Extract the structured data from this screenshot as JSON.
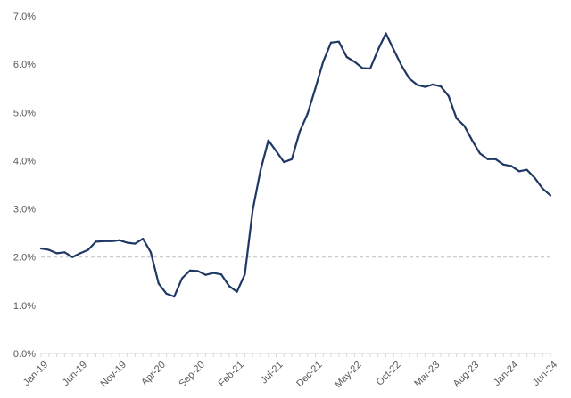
{
  "chart_data": {
    "type": "line",
    "title": "",
    "xlabel": "",
    "ylabel": "",
    "ylim": [
      0,
      7
    ],
    "y_ticks": [
      "0.0%",
      "1.0%",
      "2.0%",
      "3.0%",
      "4.0%",
      "5.0%",
      "6.0%",
      "7.0%"
    ],
    "x_tick_labels": [
      "Jan-19",
      "Jun-19",
      "Nov-19",
      "Apr-20",
      "Sep-20",
      "Feb-21",
      "Jul-21",
      "Dec-21",
      "May-22",
      "Oct-22",
      "Mar-23",
      "Aug-23",
      "Jan-24",
      "Jun-24"
    ],
    "x_start": "2019-01",
    "x_end": "2024-06",
    "grid": false,
    "reference_line": {
      "y": 2.0,
      "style": "dashed",
      "color": "#bfbfbf"
    },
    "series": [
      {
        "color": "#1f3864",
        "x": [
          "2019-01",
          "2019-02",
          "2019-03",
          "2019-04",
          "2019-05",
          "2019-06",
          "2019-07",
          "2019-08",
          "2019-09",
          "2019-10",
          "2019-11",
          "2019-12",
          "2020-01",
          "2020-02",
          "2020-03",
          "2020-04",
          "2020-05",
          "2020-06",
          "2020-07",
          "2020-08",
          "2020-09",
          "2020-10",
          "2020-11",
          "2020-12",
          "2021-01",
          "2021-02",
          "2021-03",
          "2021-04",
          "2021-05",
          "2021-06",
          "2021-07",
          "2021-08",
          "2021-09",
          "2021-10",
          "2021-11",
          "2021-12",
          "2022-01",
          "2022-02",
          "2022-03",
          "2022-04",
          "2022-05",
          "2022-06",
          "2022-07",
          "2022-08",
          "2022-09",
          "2022-10",
          "2022-11",
          "2022-12",
          "2023-01",
          "2023-02",
          "2023-03",
          "2023-04",
          "2023-05",
          "2023-06",
          "2023-07",
          "2023-08",
          "2023-09",
          "2023-10",
          "2023-11",
          "2023-12",
          "2024-01",
          "2024-02",
          "2024-03",
          "2024-04",
          "2024-05",
          "2024-06"
        ],
        "values": [
          2.18,
          2.15,
          2.08,
          2.1,
          2.0,
          2.08,
          2.15,
          2.32,
          2.33,
          2.33,
          2.35,
          2.3,
          2.28,
          2.38,
          2.1,
          1.45,
          1.24,
          1.18,
          1.56,
          1.72,
          1.71,
          1.63,
          1.67,
          1.64,
          1.4,
          1.28,
          1.64,
          2.97,
          3.8,
          4.42,
          4.2,
          3.97,
          4.03,
          4.6,
          4.97,
          5.5,
          6.05,
          6.45,
          6.47,
          6.15,
          6.05,
          5.92,
          5.91,
          6.3,
          6.64,
          6.3,
          5.97,
          5.7,
          5.57,
          5.53,
          5.58,
          5.54,
          5.34,
          4.88,
          4.72,
          4.42,
          4.15,
          4.03,
          4.03,
          3.92,
          3.89,
          3.78,
          3.81,
          3.64,
          3.42,
          3.28
        ]
      }
    ]
  }
}
